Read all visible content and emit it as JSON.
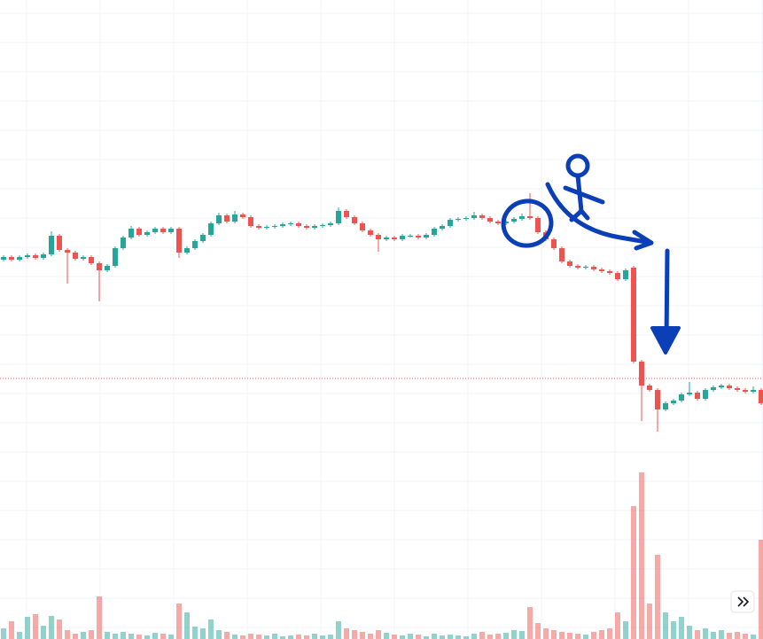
{
  "chart_data": {
    "type": "candlestick",
    "up_color": "#26a69a",
    "down_color": "#ef5350",
    "grid": true,
    "ylim": [
      0,
      721
    ],
    "volume_ylim": [
      0,
      200
    ],
    "price_line": 294,
    "open": [
      428,
      431,
      428,
      431,
      433,
      430,
      434,
      455,
      439,
      436,
      429,
      431,
      424,
      416,
      421,
      441,
      453,
      463,
      456,
      459,
      463,
      459,
      463,
      436,
      441,
      449,
      456,
      469,
      478,
      471,
      479,
      476,
      466,
      464,
      465,
      466,
      468,
      469,
      466,
      464,
      466,
      467,
      469,
      483,
      476,
      469,
      461,
      456,
      451,
      453,
      451,
      455,
      455,
      453,
      456,
      463,
      466,
      473,
      474,
      475,
      478,
      475,
      471,
      469,
      471,
      474,
      477,
      475,
      459,
      451,
      441,
      426,
      421,
      419,
      420,
      417,
      415,
      413,
      406,
      419,
      313,
      286,
      281,
      259,
      266,
      269,
      276,
      278,
      271,
      281,
      284,
      286,
      283,
      281,
      279,
      281
    ],
    "high": [
      433,
      433,
      433,
      435,
      435,
      436,
      460,
      457,
      441,
      438,
      433,
      433,
      426,
      423,
      443,
      455,
      466,
      465,
      461,
      465,
      465,
      465,
      465,
      443,
      451,
      458,
      471,
      481,
      480,
      483,
      481,
      478,
      468,
      467,
      468,
      470,
      471,
      471,
      468,
      468,
      469,
      471,
      487,
      485,
      478,
      471,
      463,
      458,
      455,
      455,
      457,
      457,
      457,
      458,
      465,
      468,
      475,
      476,
      477,
      482,
      480,
      477,
      473,
      473,
      476,
      480,
      503,
      477,
      461,
      453,
      443,
      428,
      423,
      422,
      422,
      419,
      417,
      415,
      418,
      421,
      315,
      288,
      283,
      268,
      271,
      278,
      290,
      280,
      283,
      286,
      288,
      288,
      285,
      283,
      285,
      283
    ],
    "low": [
      426,
      426,
      426,
      429,
      428,
      428,
      432,
      437,
      401,
      427,
      427,
      422,
      381,
      414,
      419,
      439,
      451,
      454,
      454,
      457,
      457,
      457,
      430,
      434,
      439,
      447,
      454,
      467,
      469,
      469,
      474,
      464,
      462,
      462,
      463,
      464,
      466,
      464,
      462,
      462,
      464,
      465,
      467,
      474,
      467,
      459,
      454,
      437,
      449,
      449,
      449,
      453,
      451,
      451,
      454,
      461,
      464,
      471,
      472,
      473,
      473,
      469,
      467,
      467,
      469,
      472,
      473,
      457,
      449,
      439,
      424,
      419,
      417,
      417,
      415,
      413,
      411,
      404,
      404,
      311,
      246,
      279,
      234,
      257,
      264,
      267,
      274,
      269,
      269,
      279,
      282,
      281,
      279,
      277,
      277,
      264
    ],
    "close": [
      431,
      428,
      431,
      433,
      430,
      434,
      455,
      439,
      436,
      429,
      431,
      424,
      416,
      421,
      441,
      453,
      463,
      456,
      459,
      463,
      459,
      463,
      436,
      441,
      449,
      456,
      469,
      478,
      471,
      479,
      476,
      466,
      464,
      465,
      466,
      468,
      469,
      466,
      464,
      466,
      467,
      469,
      483,
      476,
      469,
      461,
      456,
      451,
      453,
      451,
      455,
      455,
      453,
      456,
      463,
      466,
      473,
      474,
      475,
      478,
      475,
      471,
      469,
      471,
      474,
      477,
      475,
      459,
      451,
      441,
      426,
      421,
      419,
      420,
      417,
      415,
      413,
      406,
      416,
      313,
      286,
      281,
      259,
      266,
      269,
      276,
      278,
      271,
      281,
      284,
      286,
      283,
      281,
      279,
      281,
      266
    ],
    "volume": [
      12,
      20,
      8,
      25,
      28,
      15,
      26,
      22,
      10,
      6,
      8,
      10,
      48,
      8,
      6,
      8,
      6,
      5,
      4,
      7,
      6,
      5,
      40,
      30,
      14,
      12,
      22,
      10,
      8,
      5,
      4,
      6,
      5,
      4,
      6,
      3,
      4,
      5,
      4,
      6,
      4,
      5,
      20,
      12,
      10,
      8,
      6,
      10,
      7,
      5,
      4,
      6,
      5,
      3,
      6,
      4,
      5,
      4,
      3,
      6,
      8,
      5,
      6,
      7,
      10,
      9,
      36,
      18,
      12,
      10,
      8,
      7,
      6,
      5,
      8,
      10,
      12,
      30,
      20,
      150,
      188,
      40,
      95,
      30,
      20,
      25,
      15,
      10,
      12,
      8,
      10,
      7,
      8,
      6,
      5,
      112
    ]
  }
}
